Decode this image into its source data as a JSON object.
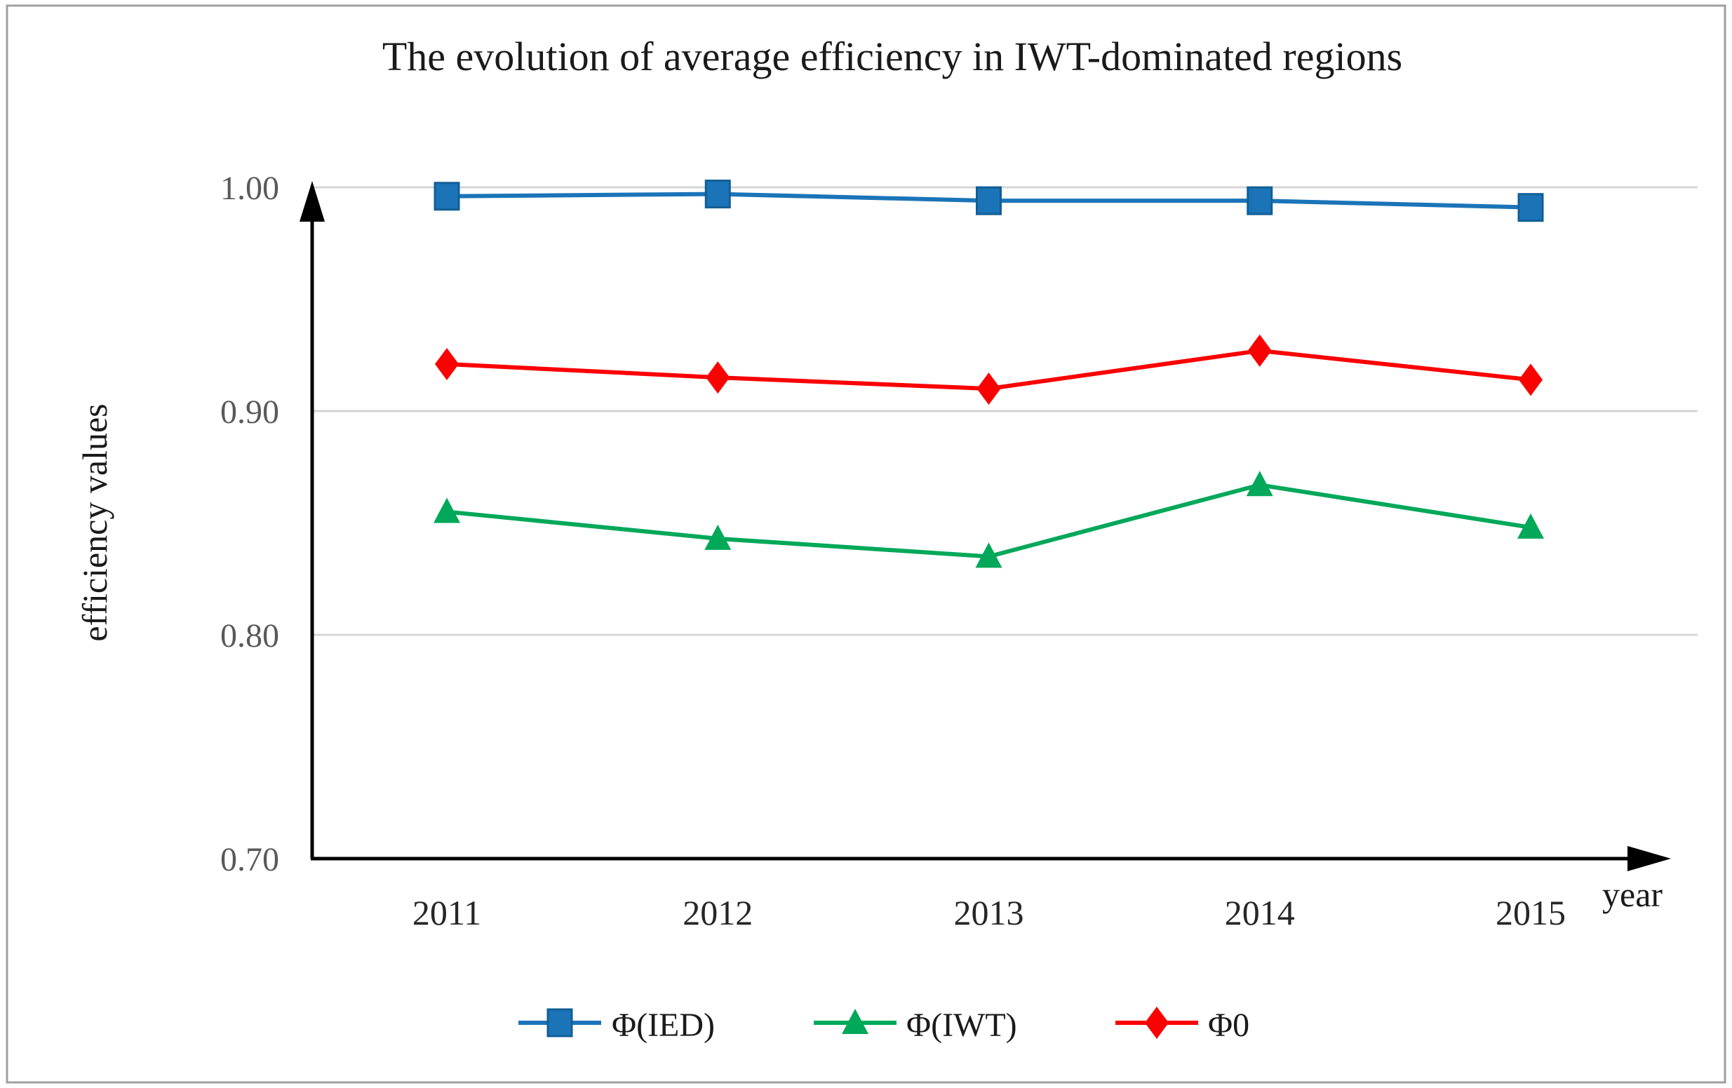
{
  "chart_data": {
    "type": "line",
    "title": "The evolution of average efficiency in IWT-dominated regions",
    "xlabel": "year",
    "ylabel": "efficiency values",
    "categories": [
      "2011",
      "2012",
      "2013",
      "2014",
      "2015"
    ],
    "ylim": [
      0.7,
      1.0
    ],
    "yticks": [
      {
        "label": "1.00",
        "value": 1.0,
        "gridline": true
      },
      {
        "label": "0.90",
        "value": 0.9,
        "gridline": true
      },
      {
        "label": "0.80",
        "value": 0.8,
        "gridline": true
      },
      {
        "label": "0.70",
        "value": 0.7,
        "gridline": false
      }
    ],
    "grid": "horizontal",
    "legend_position": "bottom",
    "series": [
      {
        "name": "Φ(IED)",
        "marker": "square",
        "color": "#1B74B8",
        "marker_stroke": "#115E96",
        "values": [
          0.996,
          0.997,
          0.994,
          0.994,
          0.991
        ]
      },
      {
        "name": "Φ(IWT)",
        "marker": "triangle",
        "color": "#00A859",
        "marker_stroke": "#00A859",
        "values": [
          0.855,
          0.843,
          0.835,
          0.867,
          0.848
        ]
      },
      {
        "name": "Φ0",
        "marker": "diamond",
        "color": "#FB0000",
        "marker_stroke": "#FB0000",
        "values": [
          0.921,
          0.915,
          0.91,
          0.927,
          0.914
        ]
      }
    ],
    "colors": {
      "grid": "#D6D6D6",
      "axis": "#000000",
      "tick_text": "#595959",
      "text": "#1A1A1A",
      "border": "#A0A0A4"
    }
  }
}
